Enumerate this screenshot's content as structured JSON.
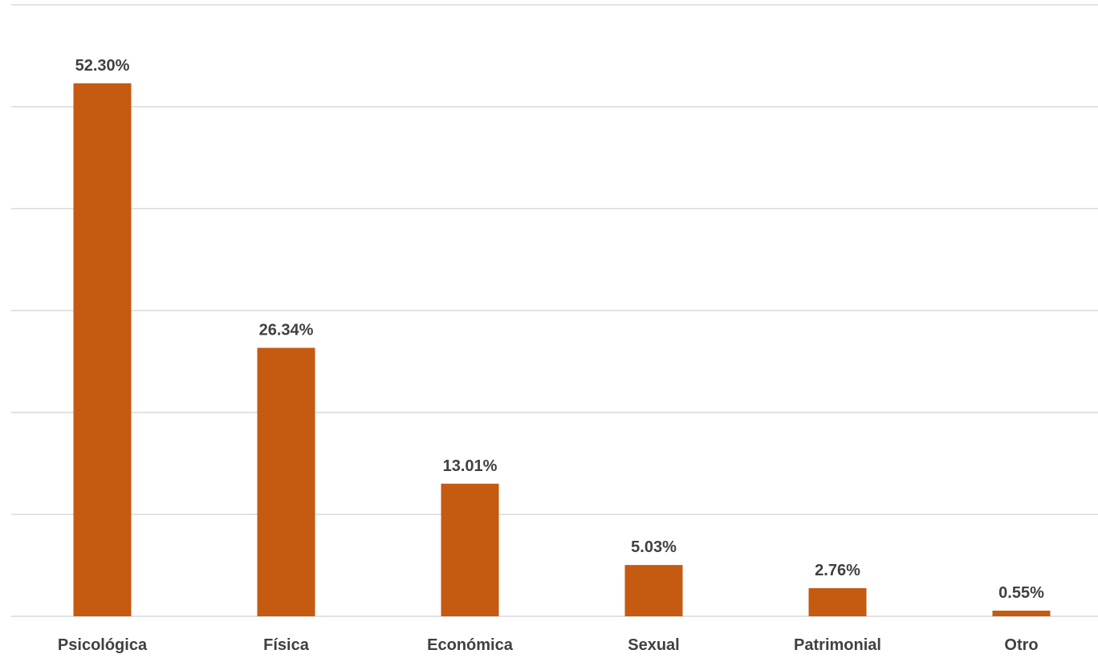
{
  "chart_data": {
    "type": "bar",
    "categories": [
      "Psicológica",
      "Física",
      "Económica",
      "Sexual",
      "Patrimonial",
      "Otro"
    ],
    "values": [
      52.3,
      26.34,
      13.01,
      5.03,
      2.76,
      0.55
    ],
    "data_labels": [
      "52.30%",
      "26.34%",
      "13.01%",
      "5.03%",
      "2.76%",
      "0.55%"
    ],
    "title": "",
    "xlabel": "",
    "ylabel": "",
    "ylim": [
      0,
      60
    ],
    "grid": true,
    "legend": "none",
    "bar_color": "#c55a11",
    "label_color": "#404040",
    "grid_color": "#d9d9d9"
  }
}
